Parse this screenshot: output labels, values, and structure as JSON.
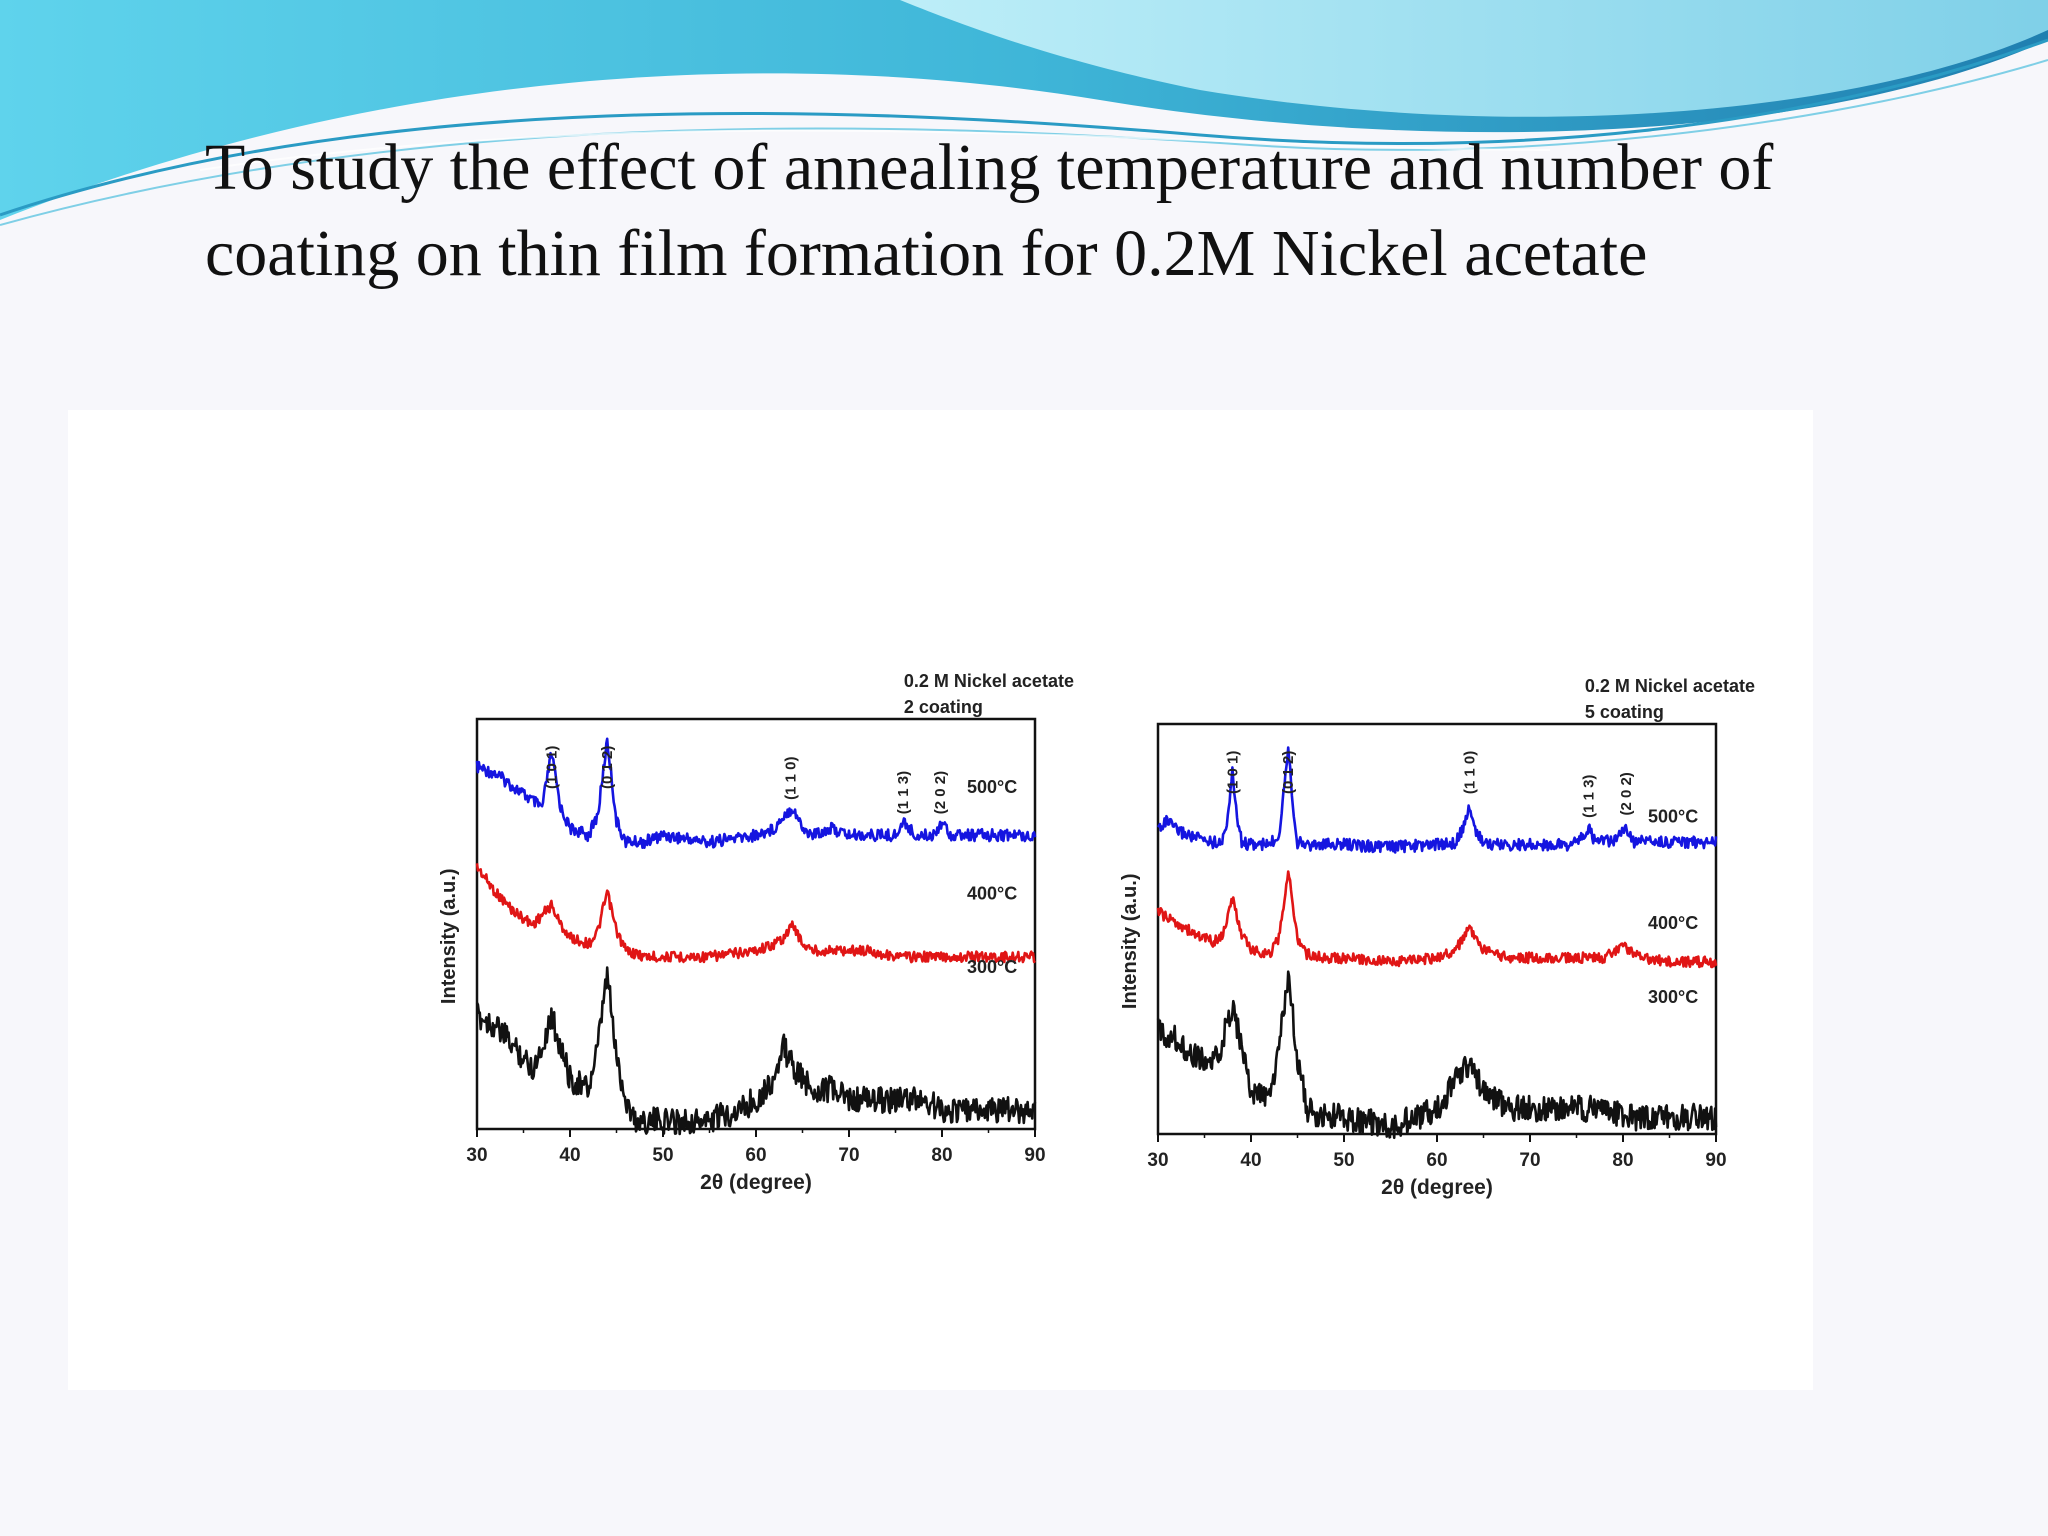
{
  "slide": {
    "title_lines": [
      "To study the  effect of annealing temperature and number  of",
      "coating on thin film formation for 0.2M Nickel acetate"
    ],
    "colors": {
      "header_wave_dark": "#3fb6d8",
      "header_wave_light": "#a9e2f0",
      "background": "#f7f7fb"
    }
  },
  "chart_data": [
    {
      "type": "line",
      "annotation": [
        "0.2 M Nickel acetate",
        "2 coating"
      ],
      "xlabel": "2θ (degree)",
      "ylabel": "Intensity (a.u.)",
      "xlim": [
        30,
        90
      ],
      "xticks": [
        30,
        40,
        50,
        60,
        70,
        80,
        90
      ],
      "ylim": [
        0,
        10
      ],
      "peak_labels": [
        {
          "text": "(1 0 1)",
          "x": 38.0
        },
        {
          "text": "(0 1 2)",
          "x": 44.0
        },
        {
          "text": "(1 1 0)",
          "x": 63.7
        },
        {
          "text": "(1 1 3)",
          "x": 75.8
        },
        {
          "text": "(2 0 2)",
          "x": 79.8
        }
      ],
      "series": [
        {
          "name": "500°C",
          "color": "#1515e0",
          "x": [
            30,
            32,
            34,
            36,
            37,
            38,
            39,
            40,
            42,
            43,
            44,
            45,
            46,
            48,
            50,
            55,
            60,
            62,
            63,
            64,
            65,
            66,
            68,
            70,
            72,
            74,
            75,
            76,
            77,
            78,
            79,
            80,
            81,
            82,
            84,
            86,
            88,
            90
          ],
          "y": [
            8.9,
            8.8,
            8.6,
            8.4,
            8.3,
            9.1,
            8.3,
            8.0,
            7.9,
            8.2,
            9.3,
            8.1,
            7.8,
            7.8,
            7.9,
            7.8,
            7.9,
            8.0,
            8.2,
            8.3,
            8.0,
            7.9,
            8.0,
            7.9,
            7.9,
            7.9,
            7.9,
            8.1,
            7.9,
            7.9,
            7.9,
            8.1,
            7.9,
            7.9,
            7.9,
            7.9,
            7.9,
            7.9
          ]
        },
        {
          "name": "400°C",
          "color": "#e01515",
          "x": [
            30,
            31,
            32,
            34,
            36,
            38,
            39,
            40,
            42,
            43,
            44,
            45,
            46,
            48,
            50,
            55,
            60,
            62,
            63,
            64,
            65,
            66,
            68,
            70,
            72,
            75,
            78,
            80,
            82,
            85,
            88,
            90
          ],
          "y": [
            6.3,
            6.1,
            5.9,
            5.6,
            5.4,
            5.7,
            5.4,
            5.2,
            5.1,
            5.3,
            5.9,
            5.3,
            5.0,
            4.9,
            4.9,
            4.9,
            5.0,
            5.1,
            5.2,
            5.4,
            5.1,
            5.0,
            5.0,
            5.0,
            5.0,
            4.9,
            4.9,
            4.9,
            4.9,
            4.9,
            4.9,
            4.9
          ]
        },
        {
          "name": "300°C",
          "color": "#111111",
          "x": [
            30,
            32,
            34,
            36,
            37,
            38,
            39,
            40,
            42,
            43,
            44,
            45,
            46,
            47,
            48,
            50,
            55,
            58,
            60,
            62,
            63,
            64,
            65,
            66,
            68,
            70,
            72,
            75,
            78,
            80,
            82,
            85,
            88,
            90
          ],
          "y": [
            2.8,
            2.7,
            2.5,
            2.3,
            2.5,
            2.8,
            2.5,
            2.2,
            2.1,
            2.5,
            3.2,
            2.4,
            2.0,
            1.8,
            1.8,
            1.8,
            1.8,
            1.9,
            2.0,
            2.2,
            2.5,
            2.3,
            2.2,
            2.1,
            2.1,
            2.0,
            2.0,
            2.0,
            2.0,
            1.9,
            1.9,
            1.9,
            1.9,
            1.9
          ]
        }
      ]
    },
    {
      "type": "line",
      "annotation": [
        "0.2 M Nickel acetate",
        "5 coating"
      ],
      "xlabel": "2θ (degree)",
      "ylabel": "Intensity (a.u.)",
      "xlim": [
        30,
        90
      ],
      "xticks": [
        30,
        40,
        50,
        60,
        70,
        80,
        90
      ],
      "ylim": [
        0,
        10
      ],
      "peak_labels": [
        {
          "text": "(1 0 1)",
          "x": 38.0
        },
        {
          "text": "(0 1 2)",
          "x": 44.0
        },
        {
          "text": "(1 1 0)",
          "x": 63.5
        },
        {
          "text": "(1 1 3)",
          "x": 76.3
        },
        {
          "text": "(2 0 2)",
          "x": 80.3
        }
      ],
      "series": [
        {
          "name": "500°C",
          "color": "#1515e0",
          "x": [
            30,
            31,
            32,
            34,
            36,
            37,
            37.5,
            38,
            38.5,
            39,
            40,
            42,
            43,
            43.5,
            44,
            44.5,
            45,
            46,
            48,
            50,
            55,
            60,
            62,
            63,
            63.5,
            64,
            65,
            66,
            68,
            70,
            72,
            74,
            75,
            76,
            76.3,
            77,
            78,
            79,
            80,
            80.3,
            81,
            82,
            84,
            86,
            88,
            90
          ],
          "y": [
            6.5,
            6.8,
            6.4,
            6.1,
            5.9,
            6.0,
            7.0,
            8.8,
            7.0,
            5.9,
            5.8,
            5.8,
            6.2,
            8.0,
            10.0,
            7.5,
            5.9,
            5.8,
            5.8,
            5.8,
            5.7,
            5.8,
            5.9,
            6.6,
            7.5,
            6.5,
            5.9,
            5.8,
            5.8,
            5.8,
            5.8,
            5.8,
            5.9,
            6.3,
            6.5,
            5.9,
            6.0,
            5.9,
            6.3,
            6.6,
            5.9,
            6.0,
            5.9,
            5.9,
            5.9,
            5.9
          ]
        },
        {
          "name": "400°C",
          "color": "#e01515",
          "x": [
            30,
            31,
            32,
            34,
            36,
            37,
            38,
            39,
            40,
            42,
            43,
            44,
            45,
            46,
            48,
            50,
            55,
            60,
            62,
            63,
            63.5,
            64,
            65,
            66,
            68,
            70,
            72,
            75,
            78,
            80,
            82,
            85,
            88,
            90
          ],
          "y": [
            4.8,
            4.6,
            4.5,
            4.2,
            4.0,
            4.2,
            5.1,
            4.2,
            3.8,
            3.7,
            4.1,
            5.8,
            4.1,
            3.7,
            3.6,
            3.6,
            3.5,
            3.6,
            3.8,
            4.2,
            4.4,
            4.1,
            3.8,
            3.7,
            3.6,
            3.6,
            3.6,
            3.6,
            3.6,
            3.9,
            3.6,
            3.5,
            3.5,
            3.5
          ]
        },
        {
          "name": "300°C",
          "color": "#111111",
          "x": [
            30,
            32,
            34,
            36,
            37,
            38,
            39,
            40,
            42,
            43,
            44,
            45,
            46,
            47,
            48,
            50,
            55,
            58,
            60,
            62,
            63,
            64,
            65,
            66,
            68,
            70,
            72,
            75,
            78,
            80,
            82,
            85,
            88,
            90
          ],
          "y": [
            2.5,
            2.4,
            2.2,
            2.1,
            2.4,
            2.8,
            2.3,
            1.8,
            1.7,
            2.3,
            3.1,
            2.2,
            1.6,
            1.5,
            1.5,
            1.5,
            1.4,
            1.5,
            1.6,
            1.9,
            2.1,
            2.0,
            1.8,
            1.7,
            1.6,
            1.6,
            1.6,
            1.6,
            1.6,
            1.5,
            1.5,
            1.5,
            1.5,
            1.5
          ]
        }
      ]
    }
  ]
}
